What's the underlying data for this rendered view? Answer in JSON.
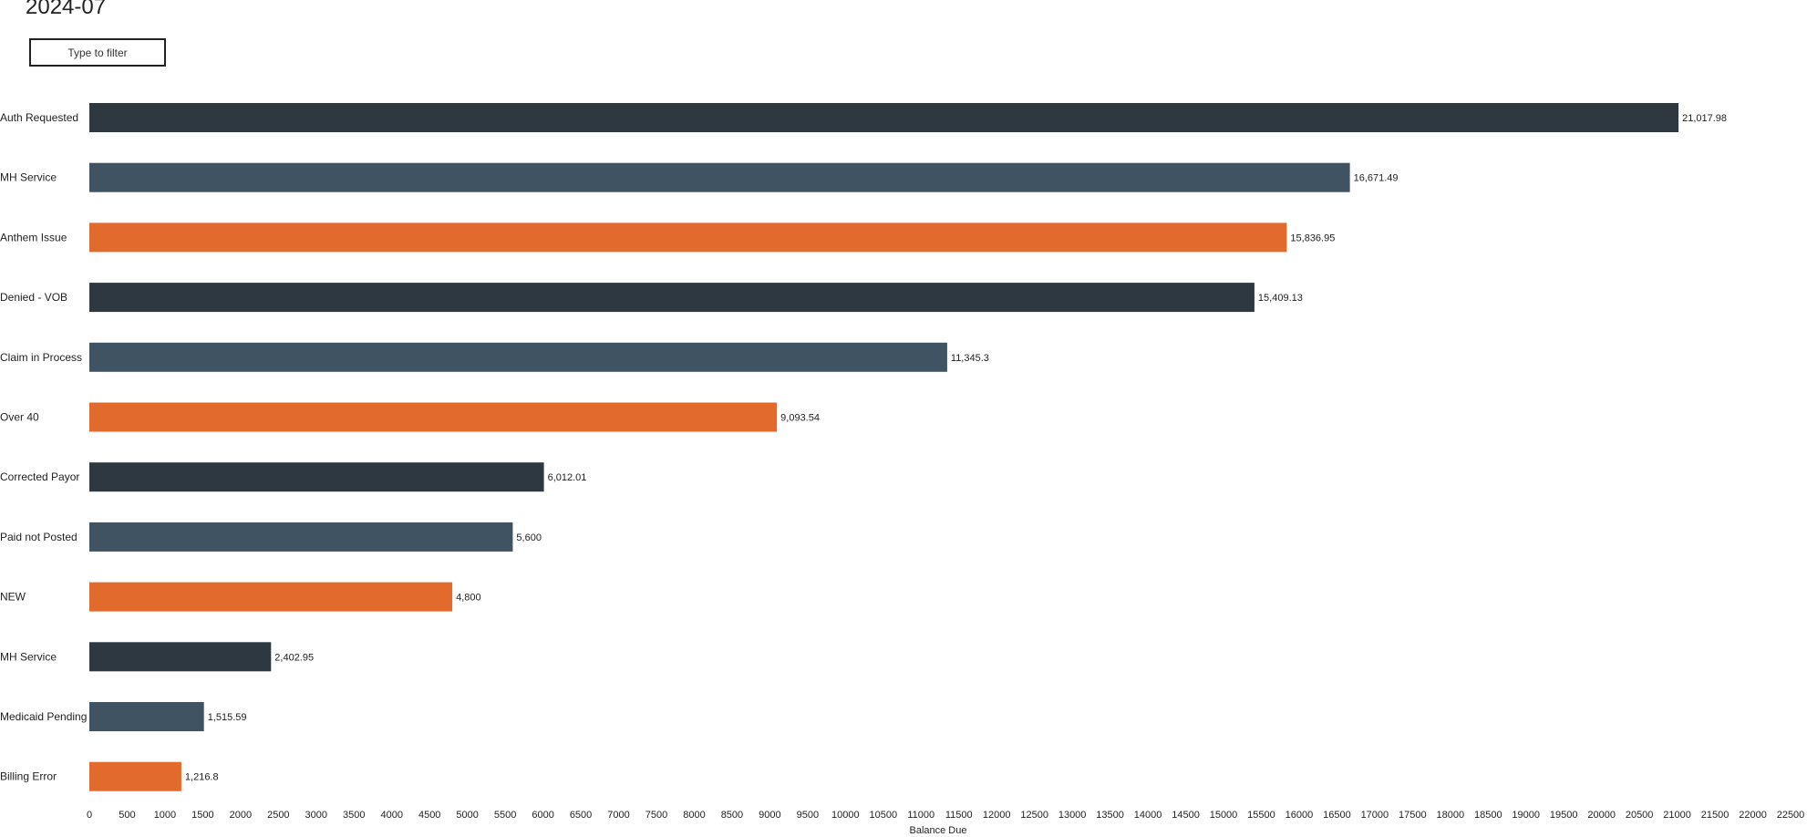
{
  "header": {
    "title": "2024-07"
  },
  "filter": {
    "placeholder": "Type to filter"
  },
  "colors": {
    "dark": "#2d3841",
    "slate": "#3f5362",
    "orange": "#e26a2c",
    "text": "#222222"
  },
  "chart_data": {
    "type": "bar",
    "orientation": "horizontal",
    "title": "",
    "xlabel": "Balance Due",
    "ylabel": "",
    "xlim": [
      0,
      22500
    ],
    "xticks": [
      0,
      500,
      1000,
      1500,
      2000,
      2500,
      3000,
      3500,
      4000,
      4500,
      5000,
      5500,
      6000,
      6500,
      7000,
      7500,
      8000,
      8500,
      9000,
      9500,
      10000,
      10500,
      11000,
      11500,
      12000,
      12500,
      13000,
      13500,
      14000,
      14500,
      15000,
      15500,
      16000,
      16500,
      17000,
      17500,
      18000,
      18500,
      19000,
      19500,
      20000,
      20500,
      21000,
      21500,
      22000,
      22500
    ],
    "grid": false,
    "categories": [
      "Auth Requested",
      "MH Service",
      "Anthem Issue",
      "Denied - VOB",
      "Claim in Process",
      "Over 40",
      "Corrected Payor",
      "Paid not Posted",
      "NEW",
      "MH Service",
      "Medicaid Pending",
      "Billing Error"
    ],
    "values": [
      21017.98,
      16671.49,
      15836.95,
      15409.13,
      11345.3,
      9093.54,
      6012.01,
      5600,
      4800,
      2402.95,
      1515.59,
      1216.8
    ],
    "data_labels": [
      "21,017.98",
      "16,671.49",
      "15,836.95",
      "15,409.13",
      "11,345.3",
      "9,093.54",
      "6,012.01",
      "5,600",
      "4,800",
      "2,402.95",
      "1,515.59",
      "1,216.8"
    ],
    "bar_colors": [
      "#2d3841",
      "#3f5362",
      "#e26a2c",
      "#2d3841",
      "#3f5362",
      "#e26a2c",
      "#2d3841",
      "#3f5362",
      "#e26a2c",
      "#2d3841",
      "#3f5362",
      "#e26a2c"
    ]
  }
}
